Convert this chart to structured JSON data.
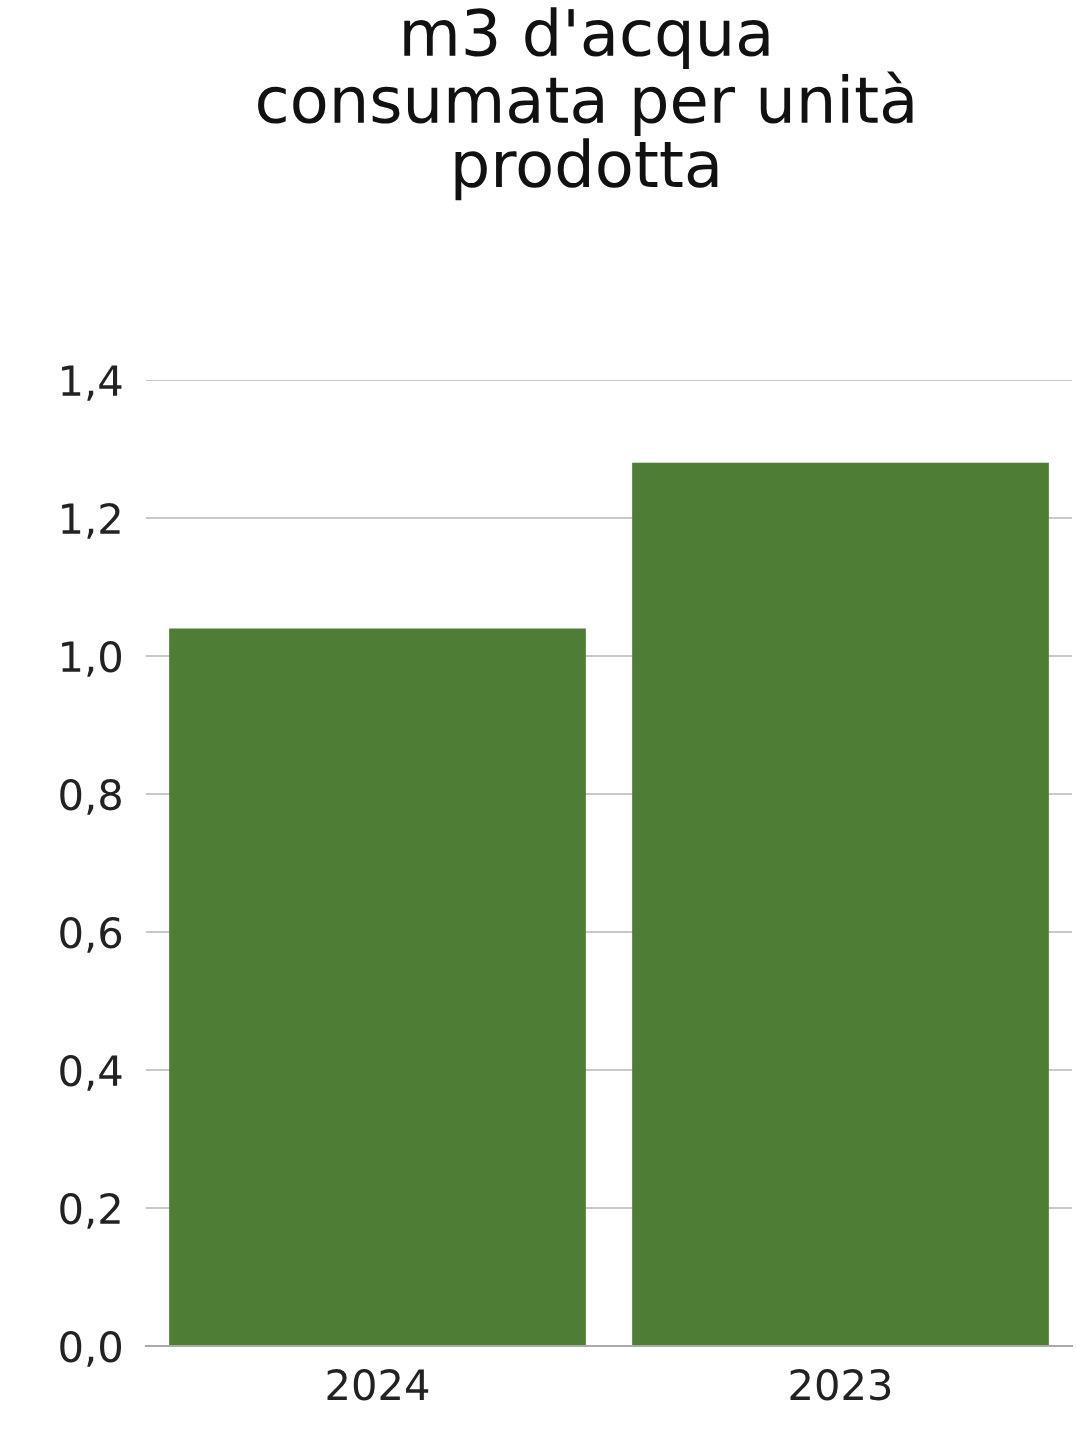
{
  "chart_data": {
    "type": "bar",
    "title": "m3 d'acqua\nconsumata per unità\nprodotta",
    "categories": [
      "2024",
      "2023"
    ],
    "values": [
      1.04,
      1.28
    ],
    "color": "#4e7d35",
    "ylim": [
      0,
      1.4
    ],
    "yticks": [
      {
        "value": 0,
        "label": "0,0"
      },
      {
        "value": 0.2,
        "label": "0,2"
      },
      {
        "value": 0.4,
        "label": "0,4"
      },
      {
        "value": 0.6,
        "label": "0,6"
      },
      {
        "value": 0.8,
        "label": "0,8"
      },
      {
        "value": 1.0,
        "label": "1,0"
      },
      {
        "value": 1.2,
        "label": "1,2"
      },
      {
        "value": 1.4,
        "label": "1,4"
      }
    ],
    "grid": "y"
  }
}
